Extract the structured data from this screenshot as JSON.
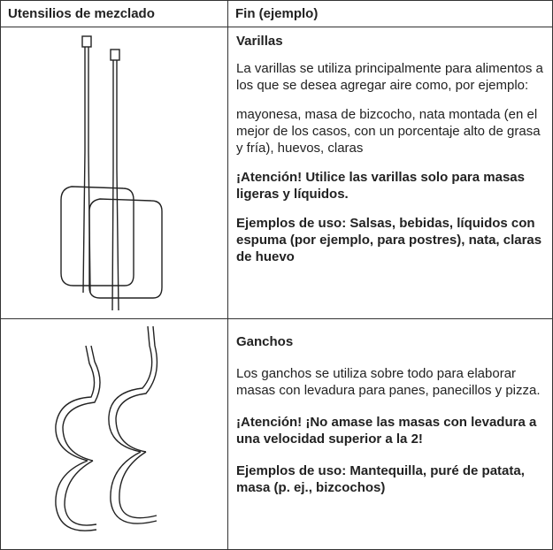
{
  "table": {
    "header": [
      "Utensilios de mezclado",
      "Fin (ejemplo)"
    ],
    "rows": [
      {
        "title": "Varillas",
        "paragraphs": [
          "La varillas se utiliza principalmente para alimentos a los que se desea agregar aire como, por ejemplo:",
          "mayonesa, masa de bizcocho, nata montada (en el mejor de los casos, con un porcentaje alto de grasa y fría), huevos, claras",
          "¡Atención! Utilice las varillas solo para masas ligeras y líquidos.",
          "Ejemplos de uso: Salsas, bebidas, líquidos con espuma (por ejemplo, para postres), nata, claras de huevo"
        ]
      },
      {
        "title": "Ganchos",
        "paragraphs": [
          "Los ganchos se utiliza sobre todo para elaborar masas con levadura para panes, panecillos y pizza.",
          "¡Atención! ¡No amase las masas con levadura a una velocidad superior a la 2!",
          "Ejemplos de uso: Mantequilla, puré de patata, masa (p. ej., bizcochos)"
        ]
      }
    ]
  }
}
